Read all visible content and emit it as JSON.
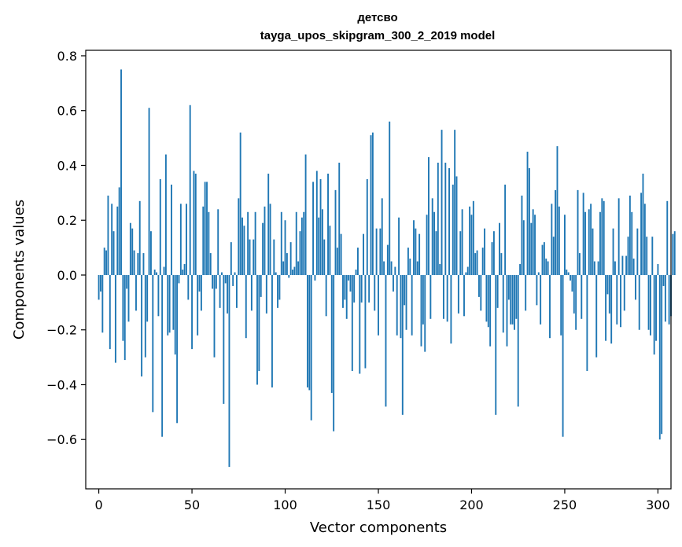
{
  "chart_data": {
    "type": "bar",
    "title": "детсво",
    "subtitle": "tayga_upos_skipgram_300_2_2019 model",
    "xlabel": "Vector components",
    "ylabel": "Components values",
    "xlim": [
      -7,
      307
    ],
    "ylim": [
      -0.78,
      0.82
    ],
    "xticks": [
      0,
      50,
      100,
      150,
      200,
      250,
      300
    ],
    "yticks": [
      -0.6,
      -0.4,
      -0.2,
      0.0,
      0.2,
      0.4,
      0.6,
      0.8
    ],
    "xtick_labels": [
      "0",
      "50",
      "100",
      "150",
      "200",
      "250",
      "300"
    ],
    "ytick_labels": [
      "−0.6",
      "−0.4",
      "−0.2",
      "0.0",
      "0.2",
      "0.4",
      "0.6",
      "0.8"
    ],
    "color": "#1f77b4",
    "values": [
      -0.09,
      -0.06,
      -0.21,
      0.1,
      0.09,
      0.29,
      -0.27,
      0.26,
      0.16,
      -0.32,
      0.25,
      0.32,
      0.75,
      -0.24,
      -0.31,
      -0.05,
      -0.17,
      0.19,
      0.17,
      0.09,
      -0.13,
      0.08,
      0.27,
      -0.37,
      0.08,
      -0.3,
      -0.17,
      0.61,
      0.16,
      -0.5,
      0.02,
      0.01,
      -0.15,
      0.35,
      -0.59,
      0.03,
      0.44,
      -0.22,
      -0.21,
      0.33,
      -0.2,
      -0.29,
      -0.54,
      -0.03,
      0.26,
      0.02,
      0.04,
      0.26,
      -0.09,
      0.62,
      -0.27,
      0.38,
      0.37,
      -0.22,
      -0.06,
      -0.13,
      0.25,
      0.34,
      0.34,
      0.23,
      0.08,
      -0.05,
      -0.3,
      -0.05,
      0.24,
      -0.12,
      0.01,
      -0.47,
      -0.03,
      -0.14,
      -0.7,
      0.12,
      -0.04,
      0.01,
      -0.12,
      0.28,
      0.52,
      0.21,
      0.18,
      -0.23,
      0.23,
      0.13,
      -0.13,
      0.13,
      0.23,
      -0.4,
      -0.35,
      -0.08,
      0.19,
      0.25,
      -0.14,
      0.37,
      0.26,
      -0.41,
      0.13,
      0.01,
      -0.12,
      -0.09,
      0.23,
      0.05,
      0.2,
      0.08,
      -0.01,
      0.12,
      0.02,
      0.03,
      0.23,
      0.05,
      0.16,
      0.21,
      0.23,
      0.44,
      -0.41,
      -0.42,
      -0.53,
      0.34,
      -0.02,
      0.38,
      0.21,
      0.35,
      0.24,
      0.13,
      -0.15,
      0.37,
      0.18,
      -0.43,
      -0.57,
      0.31,
      0.1,
      0.41,
      0.15,
      -0.12,
      -0.09,
      -0.16,
      -0.02,
      -0.06,
      -0.35,
      -0.1,
      0.02,
      0.1,
      -0.36,
      -0.1,
      0.15,
      -0.34,
      0.35,
      -0.1,
      0.51,
      0.52,
      -0.13,
      0.17,
      -0.22,
      0.17,
      0.28,
      0.05,
      -0.48,
      0.11,
      0.56,
      0.05,
      -0.06,
      0.03,
      -0.22,
      0.21,
      -0.23,
      -0.51,
      -0.11,
      -0.2,
      0.1,
      0.06,
      -0.22,
      0.2,
      0.17,
      0.05,
      0.15,
      -0.26,
      -0.18,
      -0.28,
      0.22,
      0.43,
      -0.16,
      0.28,
      0.23,
      0.16,
      0.41,
      0.04,
      0.53,
      -0.16,
      0.41,
      -0.17,
      0.39,
      -0.25,
      0.33,
      0.53,
      0.36,
      -0.14,
      0.16,
      0.24,
      -0.15,
      0.01,
      0.03,
      0.25,
      0.22,
      0.27,
      0.08,
      0.09,
      -0.08,
      -0.13,
      0.1,
      0.17,
      -0.17,
      -0.19,
      -0.26,
      0.12,
      0.16,
      -0.51,
      -0.12,
      0.19,
      0.08,
      -0.21,
      0.33,
      -0.26,
      -0.09,
      -0.18,
      -0.18,
      -0.2,
      -0.16,
      -0.48,
      0.04,
      0.29,
      0.2,
      -0.13,
      0.45,
      0.39,
      0.19,
      0.24,
      0.22,
      -0.11,
      0.01,
      -0.18,
      0.11,
      0.12,
      0.06,
      0.05,
      -0.23,
      0.26,
      0.14,
      0.31,
      0.47,
      0.25,
      -0.22,
      -0.59,
      0.22,
      0.02,
      0.01,
      -0.02,
      -0.06,
      -0.14,
      -0.2,
      0.31,
      0.08,
      -0.16,
      0.3,
      0.23,
      -0.35,
      0.24,
      0.26,
      0.17,
      0.05,
      -0.3,
      0.05,
      0.23,
      0.28,
      0.27,
      -0.24,
      -0.07,
      -0.14,
      -0.25,
      0.17,
      0.05,
      -0.18,
      0.28,
      -0.19,
      0.07,
      -0.13,
      0.07,
      0.14,
      0.29,
      0.23,
      0.06,
      -0.09,
      0.17,
      -0.2,
      0.3,
      0.37,
      0.26,
      0.14,
      -0.2,
      -0.22,
      0.14,
      -0.29,
      -0.24,
      0.04,
      -0.6,
      -0.58,
      -0.04,
      -0.17,
      0.27,
      -0.18,
      -0.15,
      0.15,
      0.16
    ]
  }
}
